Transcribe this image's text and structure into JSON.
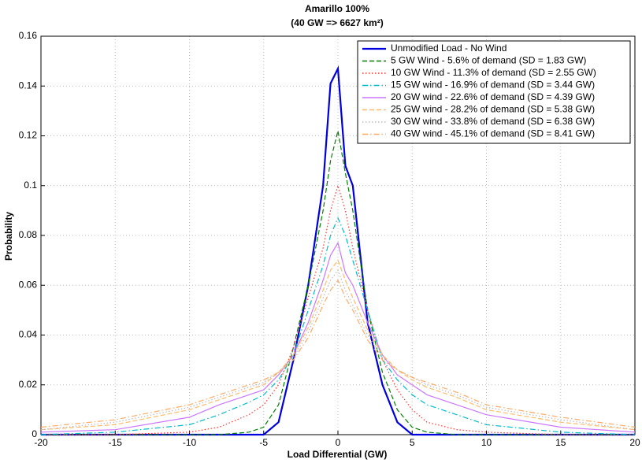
{
  "chart_data": {
    "type": "line",
    "title": "Amarillo 100%",
    "subtitle": "(40 GW => 6627 km²)",
    "x_label": "Load Differential (GW)",
    "y_label": "Probability",
    "x": [
      -20,
      -15,
      -10,
      -8,
      -6,
      -5,
      -4,
      -3,
      -2,
      -1,
      -0.5,
      0,
      0.5,
      1,
      2,
      3,
      4,
      5,
      6,
      8,
      10,
      15,
      20
    ],
    "xlim": [
      -20,
      20
    ],
    "xticks": [
      -20,
      -15,
      -10,
      -5,
      0,
      5,
      10,
      15,
      20
    ],
    "ylim": [
      0,
      0.16
    ],
    "yticks": [
      0,
      0.02,
      0.04,
      0.06,
      0.08,
      0.1,
      0.12,
      0.14,
      0.16
    ],
    "grid": true,
    "legend": "top-right",
    "series": [
      {
        "name": "Unmodified Load - No Wind",
        "color": "#0000dd",
        "dash": "solid",
        "values": [
          0,
          0,
          0,
          0,
          0,
          0,
          0.005,
          0.03,
          0.06,
          0.1,
          0.141,
          0.147,
          0.108,
          0.1,
          0.045,
          0.02,
          0.005,
          0,
          0,
          0,
          0,
          0,
          0
        ]
      },
      {
        "name": "5 GW Wind - 5.6% of demand (SD = 1.83 GW)",
        "color": "#007f00",
        "dash": "dashed",
        "values": [
          0,
          0,
          0,
          0,
          0.001,
          0.003,
          0.012,
          0.035,
          0.06,
          0.09,
          0.11,
          0.122,
          0.105,
          0.09,
          0.05,
          0.025,
          0.01,
          0.003,
          0.001,
          0,
          0,
          0,
          0
        ]
      },
      {
        "name": "10 GW Wind - 11.3% of demand (SD = 2.55 GW)",
        "color": "#ff3333",
        "dash": "dotted",
        "values": [
          0,
          0,
          0.001,
          0.003,
          0.008,
          0.012,
          0.02,
          0.035,
          0.055,
          0.075,
          0.09,
          0.1,
          0.09,
          0.075,
          0.05,
          0.03,
          0.018,
          0.01,
          0.005,
          0.002,
          0.001,
          0,
          0
        ]
      },
      {
        "name": "15 GW wind - 16.9% of demand (SD = 3.44 GW)",
        "color": "#00bbcc",
        "dash": "dashdot",
        "values": [
          0,
          0.001,
          0.004,
          0.008,
          0.013,
          0.016,
          0.022,
          0.032,
          0.05,
          0.068,
          0.08,
          0.087,
          0.08,
          0.07,
          0.05,
          0.03,
          0.022,
          0.016,
          0.012,
          0.008,
          0.004,
          0.001,
          0
        ]
      },
      {
        "name": "20 GW wind - 22.6% of demand (SD = 4.39 GW)",
        "color": "#cc77ff",
        "dash": "solid",
        "values": [
          0.001,
          0.002,
          0.007,
          0.012,
          0.016,
          0.018,
          0.024,
          0.032,
          0.045,
          0.062,
          0.072,
          0.077,
          0.065,
          0.06,
          0.045,
          0.032,
          0.024,
          0.02,
          0.016,
          0.012,
          0.008,
          0.003,
          0.001
        ]
      },
      {
        "name": "25 GW wind - 28.2% of demand (SD = 5.38 GW)",
        "color": "#ffbb66",
        "dash": "dashed",
        "values": [
          0.002,
          0.004,
          0.01,
          0.014,
          0.018,
          0.02,
          0.025,
          0.032,
          0.043,
          0.058,
          0.066,
          0.07,
          0.062,
          0.055,
          0.042,
          0.032,
          0.026,
          0.022,
          0.019,
          0.015,
          0.01,
          0.005,
          0.002
        ]
      },
      {
        "name": "30 GW wind - 33.8% of demand (SD = 6.38 GW)",
        "color": "#bbbbbb",
        "dash": "dotted",
        "values": [
          0.002,
          0.005,
          0.011,
          0.015,
          0.019,
          0.021,
          0.025,
          0.031,
          0.041,
          0.055,
          0.062,
          0.066,
          0.058,
          0.052,
          0.04,
          0.031,
          0.026,
          0.023,
          0.02,
          0.016,
          0.011,
          0.006,
          0.002
        ]
      },
      {
        "name": "40 GW wind - 45.1% of demand (SD = 8.41 GW)",
        "color": "#ffaa66",
        "dash": "dashdot",
        "values": [
          0.003,
          0.006,
          0.012,
          0.016,
          0.02,
          0.022,
          0.025,
          0.03,
          0.039,
          0.052,
          0.058,
          0.062,
          0.055,
          0.05,
          0.038,
          0.03,
          0.026,
          0.023,
          0.021,
          0.017,
          0.012,
          0.007,
          0.003
        ]
      }
    ]
  }
}
